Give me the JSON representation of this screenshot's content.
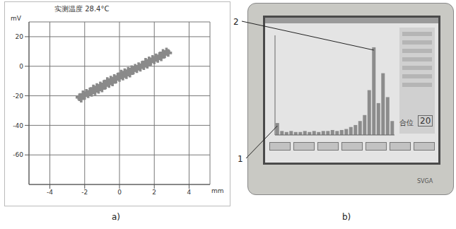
{
  "chart_data": [
    {
      "type": "scatter",
      "caption": "a)",
      "title": "实测温度 28.4°C",
      "x_label": "mm",
      "y_label": "mV",
      "series": [
        {
          "name": "实测",
          "color": "#8a8a8a",
          "marker": "cross",
          "x": [
            -2.3,
            -2.2,
            -2.1,
            -2.0,
            -1.9,
            -1.8,
            -1.7,
            -1.6,
            -1.5,
            -1.4,
            -1.3,
            -1.2,
            -1.1,
            -1.0,
            -0.9,
            -0.8,
            -0.7,
            -0.6,
            -0.5,
            -0.4,
            -0.3,
            -0.2,
            -0.1,
            0.0,
            0.1,
            0.2,
            0.3,
            0.4,
            0.5,
            0.6,
            0.7,
            0.8,
            0.9,
            1.0,
            1.1,
            1.2,
            1.3,
            1.4,
            1.5,
            1.6,
            1.7,
            1.8,
            1.9,
            2.0,
            2.1,
            2.2,
            2.3,
            2.4,
            2.5,
            2.6,
            2.7,
            2.8
          ],
          "values": [
            -21,
            -22,
            -19,
            -20,
            -18,
            -19,
            -17,
            -18,
            -15,
            -17,
            -14,
            -16,
            -13,
            -15,
            -12,
            -13,
            -10,
            -12,
            -9,
            -11,
            -8,
            -9,
            -7,
            -8,
            -5,
            -7,
            -4,
            -6,
            -3,
            -5,
            -2,
            -3,
            -1,
            -2,
            0,
            -1,
            1,
            0,
            3,
            1,
            4,
            3,
            5,
            4,
            6,
            5,
            7,
            6,
            9,
            8,
            10,
            9
          ]
        }
      ],
      "xlim": [
        -5.2,
        5.2
      ],
      "xticks": [
        -4,
        -2,
        0,
        2,
        4
      ],
      "ylim": [
        -80,
        30
      ],
      "yticks": [
        20,
        0,
        -20,
        -40,
        -60
      ],
      "grid": true
    },
    {
      "type": "bar",
      "caption": "b)",
      "categories": [
        null,
        null,
        null,
        null,
        null,
        null,
        null,
        null,
        null,
        null,
        null,
        null,
        null,
        null,
        null,
        null,
        null,
        null,
        null,
        null,
        null,
        null,
        null,
        null,
        null,
        null
      ],
      "values": [
        12,
        4,
        3,
        4,
        3,
        3,
        4,
        3,
        4,
        3,
        4,
        4,
        5,
        4,
        5,
        6,
        8,
        10,
        14,
        20,
        45,
        88,
        32,
        62,
        38,
        14
      ],
      "color": "#8c8c8c",
      "ylim": [
        0,
        100
      ],
      "tick_labels": false,
      "annotations": [
        {
          "label": "1",
          "bar": 0
        },
        {
          "label": "2",
          "bar": 21
        }
      ],
      "screen_texts": [
        "合位",
        "20",
        "SVGA"
      ]
    }
  ]
}
